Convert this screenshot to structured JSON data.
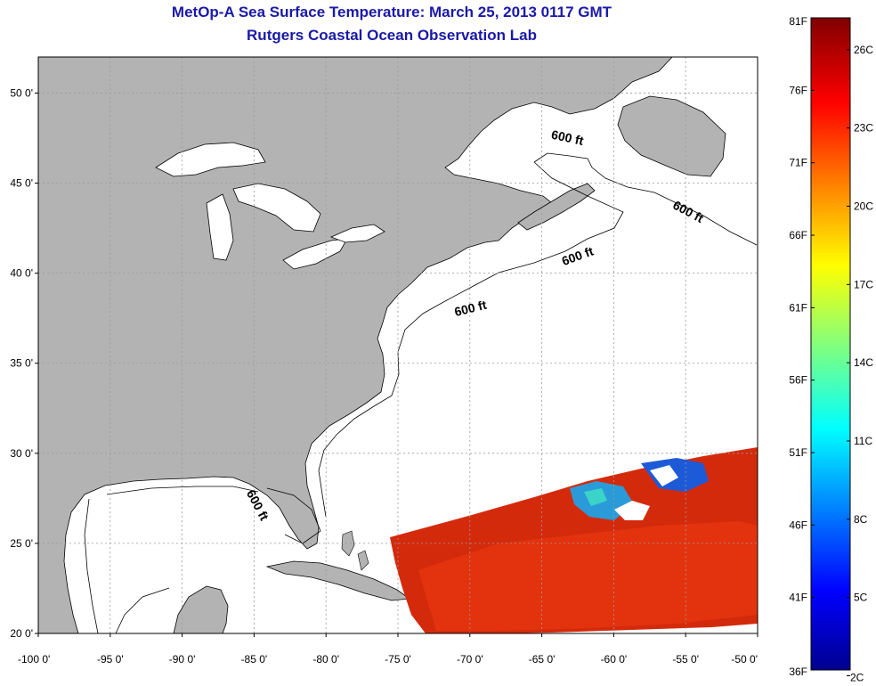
{
  "header": {
    "title": "MetOp-A Sea Surface Temperature:  March 25, 2013 0117 GMT",
    "subtitle": "Rutgers Coastal Ocean Observation Lab"
  },
  "map": {
    "lon_range": [
      -100,
      -50
    ],
    "lat_range": [
      20,
      52
    ],
    "lat_ticks": [
      "50 0'",
      "45 0'",
      "40 0'",
      "35 0'",
      "30 0'",
      "25 0'",
      "20 0'"
    ],
    "lon_ticks": [
      "-100 0'",
      "-95 0'",
      "-90 0'",
      "-85 0'",
      "-80 0'",
      "-75 0'",
      "-70 0'",
      "-65 0'",
      "-60 0'",
      "-55 0'",
      "-50 0'"
    ],
    "contour_labels": [
      "600 ft",
      "600 ft",
      "600 ft",
      "600 ft",
      "600 ft"
    ],
    "colors": {
      "land": "#b3b3b3",
      "ocean": "#ffffff",
      "gridline": "#9a9a9a",
      "coast": "#000000"
    }
  },
  "colorbar": {
    "range_f": [
      36,
      81
    ],
    "left_labels": [
      "81F",
      "76F",
      "71F",
      "66F",
      "61F",
      "56F",
      "51F",
      "46F",
      "41F",
      "36F"
    ],
    "right_labels": [
      "26C",
      "23C",
      "20C",
      "17C",
      "14C",
      "11C",
      "8C",
      "5C",
      "2C"
    ]
  }
}
